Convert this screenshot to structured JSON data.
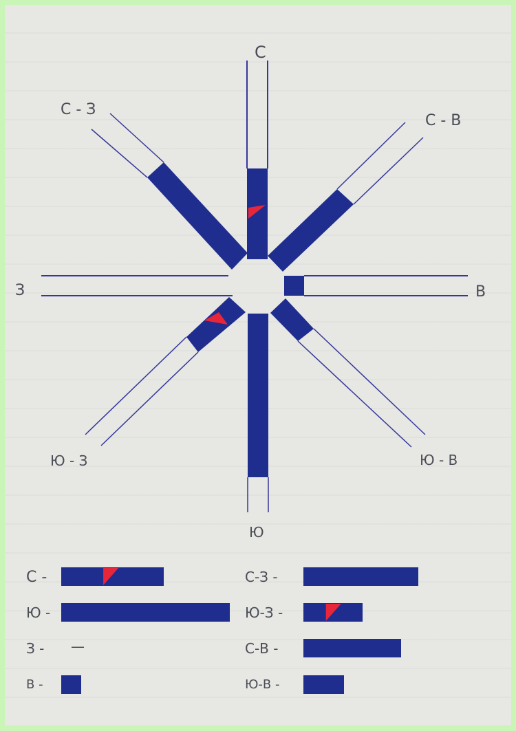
{
  "colors": {
    "ink": "#1c2a8c",
    "fill": "#1f2d8f",
    "accent": "#e8263a",
    "line": "#35379a"
  },
  "directions": {
    "north": "С",
    "south": "Ю",
    "west": "З",
    "east": "В",
    "northwest": "С - З",
    "northeast": "С - В",
    "southwest": "Ю - З",
    "southeast": "Ю - В"
  },
  "legend": {
    "left": [
      {
        "label": "С -",
        "value": 0.61,
        "accent": true
      },
      {
        "label": "Ю -",
        "value": 1.0,
        "accent": false
      },
      {
        "label": "З -",
        "value": 0.0,
        "accent": false,
        "dash": "—"
      },
      {
        "label": "В -",
        "value": 0.12,
        "accent": false
      }
    ],
    "right": [
      {
        "label": "С-З -",
        "value": 0.68,
        "accent": false
      },
      {
        "label": "Ю-З -",
        "value": 0.35,
        "accent": true
      },
      {
        "label": "С-В -",
        "value": 0.58,
        "accent": false
      },
      {
        "label": "Ю-В -",
        "value": 0.24,
        "accent": false
      }
    ]
  }
}
